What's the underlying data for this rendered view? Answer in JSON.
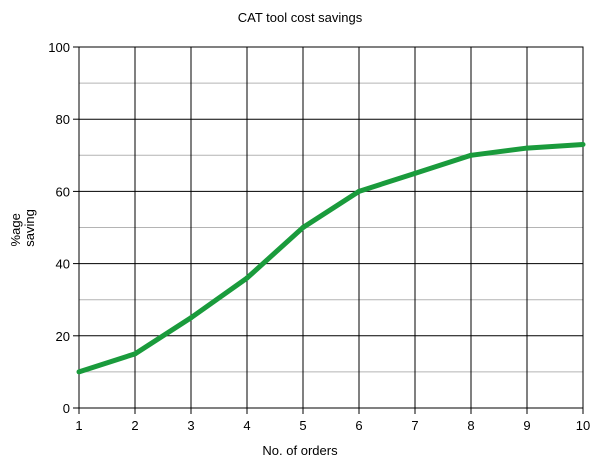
{
  "chart_data": {
    "type": "line",
    "title": "CAT tool cost savings",
    "xlabel": "No. of orders",
    "ylabel_lines": [
      "%age",
      "saving"
    ],
    "x": [
      1,
      2,
      3,
      4,
      5,
      6,
      7,
      8,
      9,
      10
    ],
    "xlim": [
      1,
      10
    ],
    "ylim": [
      0,
      100
    ],
    "y_ticks": [
      0,
      20,
      40,
      60,
      80,
      100
    ],
    "y_minor_ticks": [
      10,
      30,
      50,
      70,
      90
    ],
    "series": [
      {
        "values": [
          10,
          15,
          25,
          36,
          50,
          60,
          65,
          70,
          72,
          73
        ],
        "color": "#1a9b3c"
      }
    ],
    "grid": true,
    "legend": "none"
  }
}
